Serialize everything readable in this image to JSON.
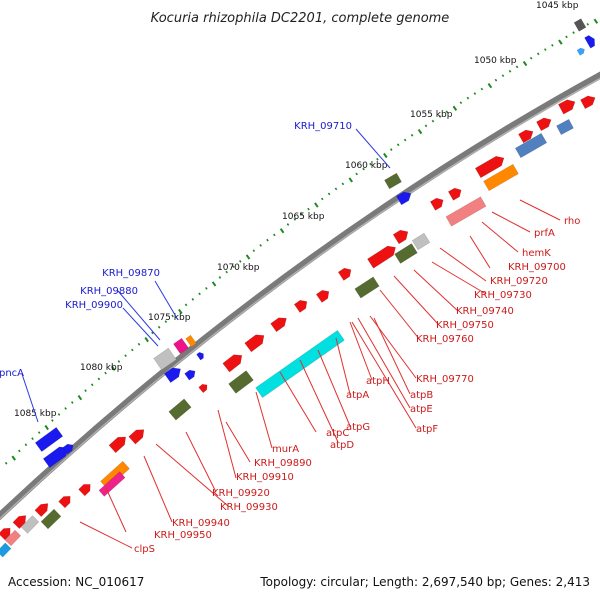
{
  "title": "Kocuria rhizophila DC2201, complete genome",
  "footer": {
    "accession": "Accession: NC_010617",
    "stats": "Topology: circular; Length: 2,697,540 bp; Genes: 2,413"
  },
  "colors": {
    "backbone": "#7a7a7a",
    "ruler_dots": "#1e8a1e",
    "label_blue": "#1a1acc",
    "label_red": "#cc1a1a",
    "leader_blue": "#2a3adf",
    "leader_red": "#e03030"
  },
  "ticks": [
    "1045 kbp",
    "1050 kbp",
    "1055 kbp",
    "1060 kbp",
    "1065 kbp",
    "1070 kbp",
    "1075 kbp",
    "1080 kbp",
    "1085 kbp"
  ],
  "blue_labels": [
    "KRH_09710",
    "KRH_09870",
    "KRH_09880",
    "KRH_09900",
    "pncA"
  ],
  "red_labels": [
    "rho",
    "prfA",
    "hemK",
    "KRH_09700",
    "KRH_09720",
    "KRH_09730",
    "KRH_09740",
    "KRH_09750",
    "KRH_09760",
    "KRH_09770",
    "atpH",
    "atpA",
    "atpB",
    "atpE",
    "atpF",
    "atpG",
    "atpC",
    "atpD",
    "murA",
    "KRH_09890",
    "KRH_09910",
    "KRH_09920",
    "KRH_09930",
    "KRH_09940",
    "KRH_09950",
    "clpS"
  ]
}
